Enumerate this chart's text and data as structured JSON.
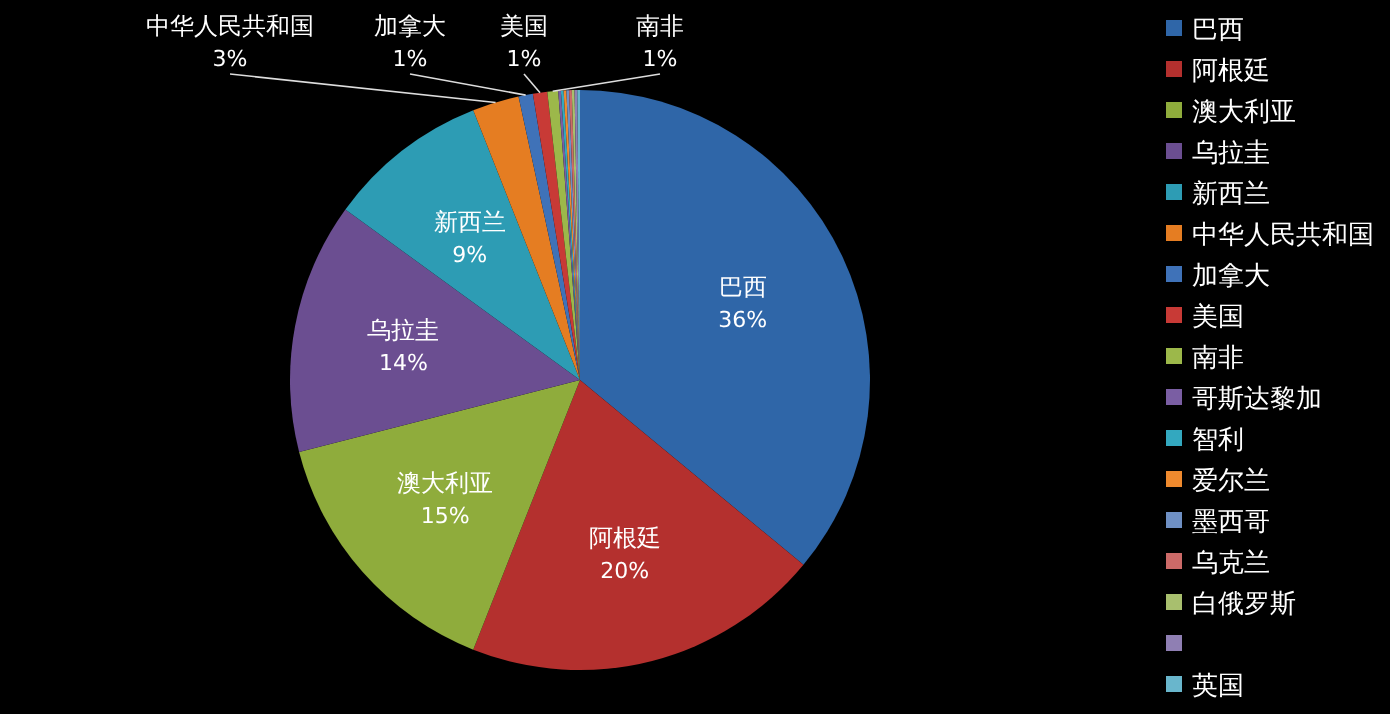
{
  "chart_data": {
    "type": "pie",
    "categories": [
      "巴西",
      "阿根廷",
      "澳大利亚",
      "乌拉圭",
      "新西兰",
      "中华人民共和国",
      "加拿大",
      "美国",
      "南非",
      "哥斯达黎加",
      "智利",
      "爱尔兰",
      "墨西哥",
      "乌克兰",
      "白俄罗斯",
      null,
      "英国"
    ],
    "values": [
      36,
      20,
      15,
      14,
      9,
      2.6,
      0.8,
      0.8,
      0.6,
      0.15,
      0.15,
      0.15,
      0.15,
      0.15,
      0.15,
      0.15,
      0.15
    ],
    "colors": [
      "#2f66a8",
      "#b4302e",
      "#8fac3c",
      "#6b4e91",
      "#2d9cb4",
      "#e57d22",
      "#3f72b8",
      "#c83a36",
      "#9cb84a",
      "#7a5ea3",
      "#33a8bf",
      "#ef8a2e",
      "#6f90c4",
      "#cc6a68",
      "#a8bf6e",
      "#8f7fb3",
      "#69b6cc"
    ],
    "value_labels": [
      "36%",
      "20%",
      "15%",
      "14%",
      "9%",
      "3%",
      "1%",
      "1%",
      "1%",
      null,
      null,
      null,
      null,
      null,
      null,
      null,
      null
    ],
    "legend": "right"
  }
}
